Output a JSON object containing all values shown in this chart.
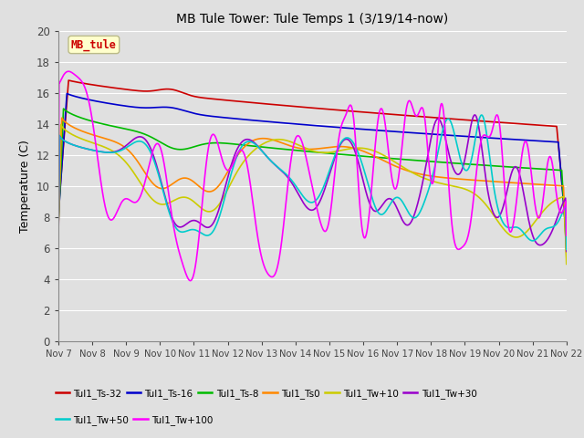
{
  "title": "MB Tule Tower: Tule Temps 1 (3/19/14-now)",
  "ylabel": "Temperature (C)",
  "xlim": [
    0,
    15
  ],
  "ylim": [
    0,
    20
  ],
  "yticks": [
    0,
    2,
    4,
    6,
    8,
    10,
    12,
    14,
    16,
    18,
    20
  ],
  "xtick_labels": [
    "Nov 7",
    "Nov 8",
    "Nov 9",
    "Nov 10",
    "Nov 11",
    "Nov 12",
    "Nov 13",
    "Nov 14",
    "Nov 15",
    "Nov 16",
    "Nov 17",
    "Nov 18",
    "Nov 19",
    "Nov 20",
    "Nov 21",
    "Nov 22"
  ],
  "background_color": "#e0e0e0",
  "plot_bg_color": "#e0e0e0",
  "grid_color": "#ffffff",
  "series": [
    {
      "name": "Tul1_Ts-32",
      "color": "#cc0000"
    },
    {
      "name": "Tul1_Ts-16",
      "color": "#0000cc"
    },
    {
      "name": "Tul1_Ts-8",
      "color": "#00bb00"
    },
    {
      "name": "Tul1_Ts0",
      "color": "#ff8800"
    },
    {
      "name": "Tul1_Tw+10",
      "color": "#cccc00"
    },
    {
      "name": "Tul1_Tw+30",
      "color": "#9900cc"
    },
    {
      "name": "Tul1_Tw+50",
      "color": "#00cccc"
    },
    {
      "name": "Tul1_Tw+100",
      "color": "#ff00ff"
    }
  ],
  "annotation_text": "MB_tule",
  "annotation_color": "#cc0000",
  "annotation_bg": "#ffffcc",
  "annotation_border": "#bbbb88"
}
